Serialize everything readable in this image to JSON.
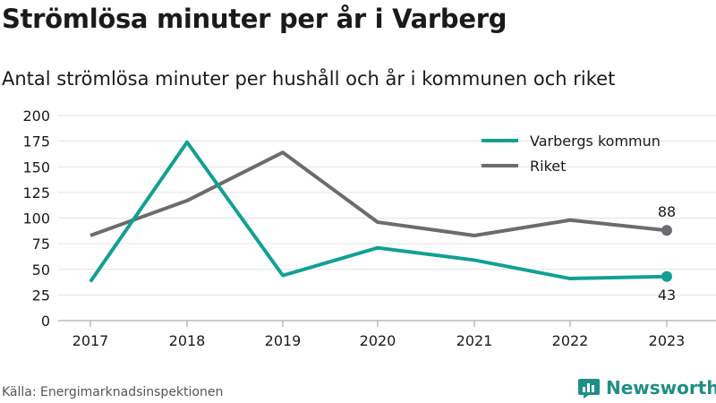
{
  "title": "Strömlösa minuter per år i Varberg",
  "subtitle": "Antal strömlösa minuter per hushåll och år i kommunen och riket",
  "source": "Källa: Energimarknadsinspektionen",
  "brand": "Newsworthy",
  "chart_data": {
    "type": "line",
    "x": [
      "2017",
      "2018",
      "2019",
      "2020",
      "2021",
      "2022",
      "2023"
    ],
    "yticks": [
      "0",
      "25",
      "50",
      "75",
      "100",
      "125",
      "150",
      "175",
      "200"
    ],
    "ylim": [
      0,
      200
    ],
    "grid": true,
    "legend_position": "top-right",
    "series": [
      {
        "name": "Varbergs kommun",
        "color": "#12a093",
        "values": [
          38,
          174,
          44,
          71,
          59,
          41,
          43
        ],
        "end_label": "43"
      },
      {
        "name": "Riket",
        "color": "#6b6b70",
        "values": [
          83,
          117,
          164,
          96,
          83,
          98,
          88
        ],
        "end_label": "88"
      }
    ]
  }
}
